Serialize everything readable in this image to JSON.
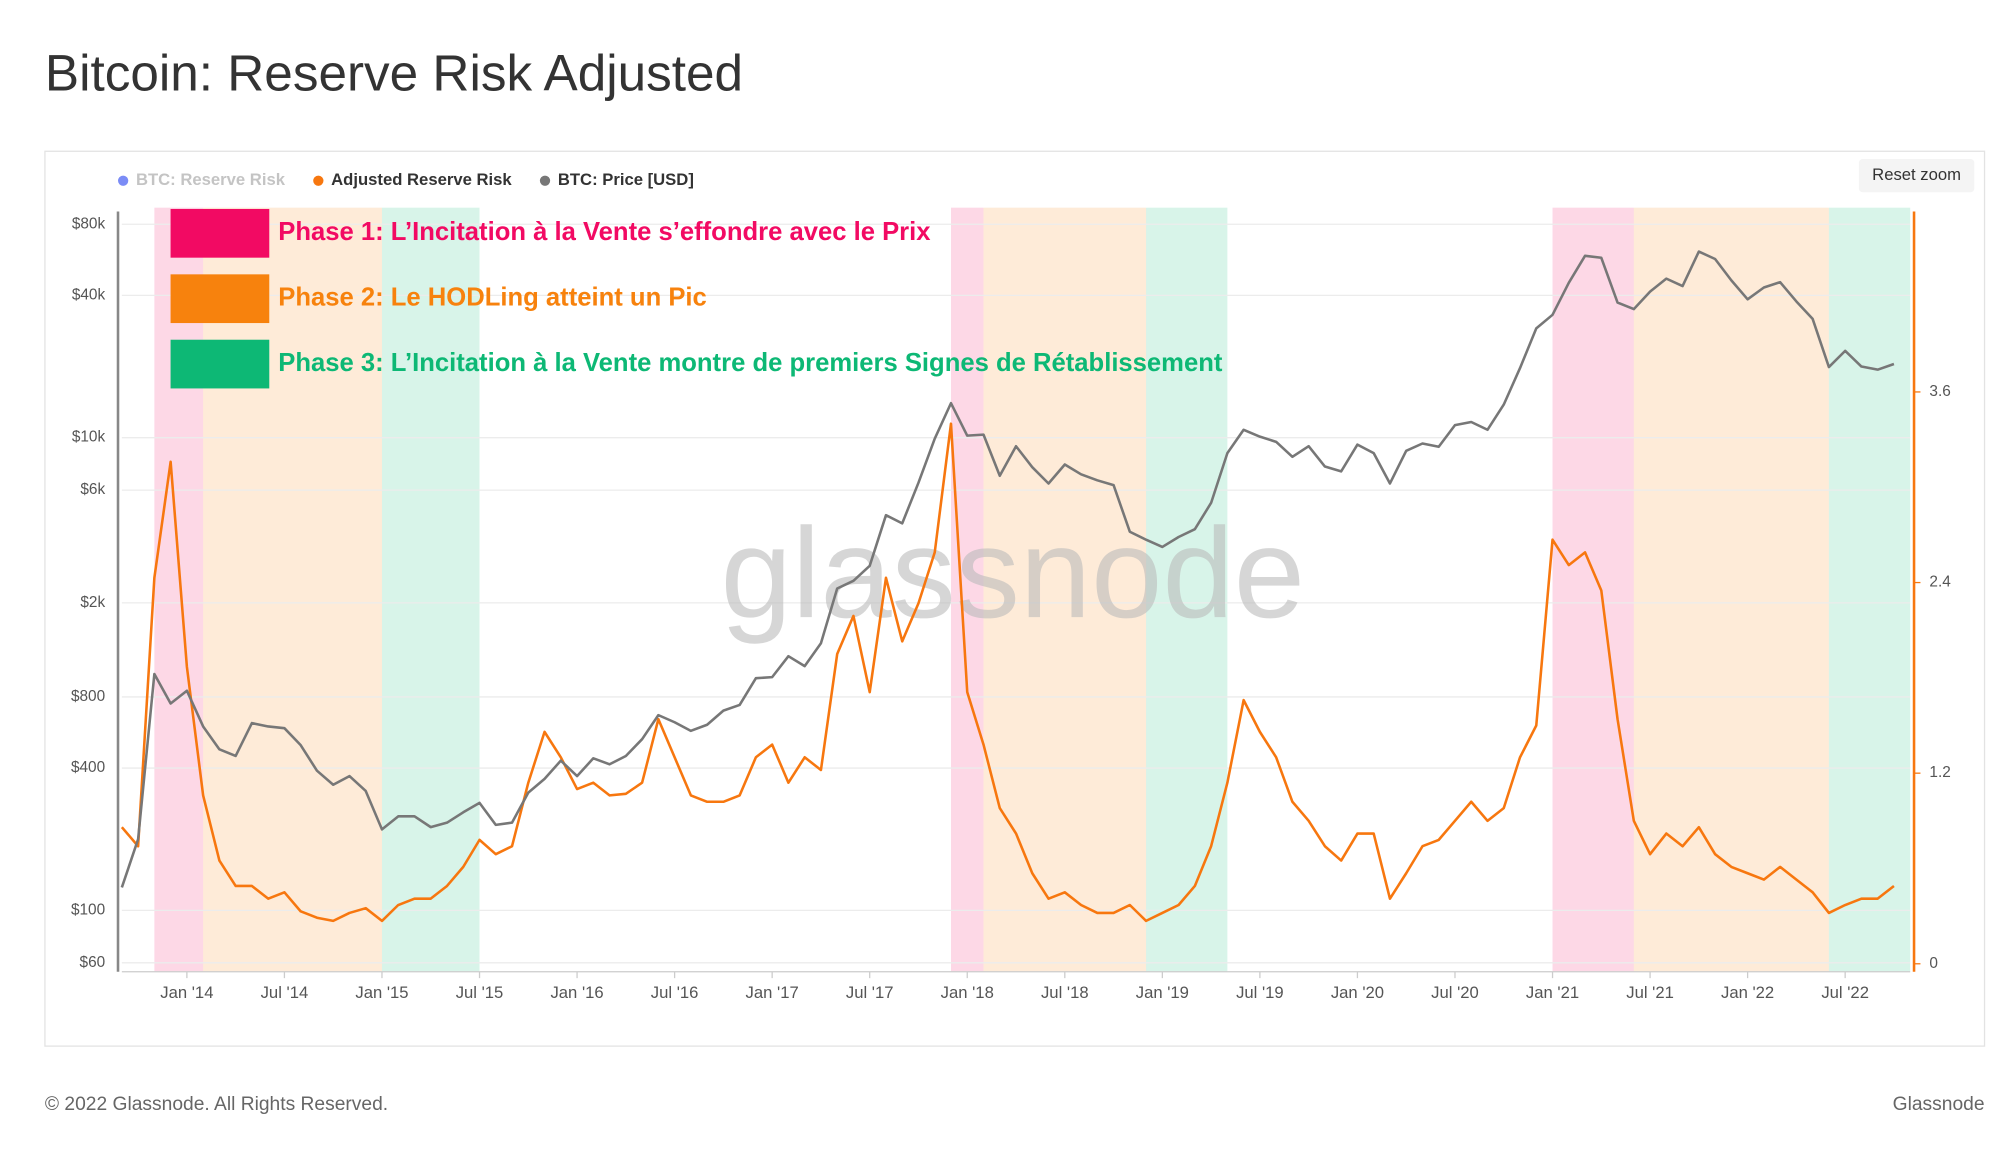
{
  "title": "Bitcoin: Reserve Risk Adjusted",
  "footer": {
    "copyright": "© 2022 Glassnode. All Rights Reserved.",
    "brand": "Glassnode"
  },
  "reset_zoom": "Reset zoom",
  "chart_data": {
    "type": "line",
    "watermark": "glassnode",
    "hidden_series": [
      {
        "name": "BTC: Reserve Risk",
        "color": "#7b8cf6"
      }
    ],
    "x": [
      "2013-09",
      "2013-10",
      "2013-11",
      "2013-12",
      "2014-01",
      "2014-02",
      "2014-03",
      "2014-04",
      "2014-05",
      "2014-06",
      "2014-07",
      "2014-08",
      "2014-09",
      "2014-10",
      "2014-11",
      "2014-12",
      "2015-01",
      "2015-02",
      "2015-03",
      "2015-04",
      "2015-05",
      "2015-06",
      "2015-07",
      "2015-08",
      "2015-09",
      "2015-10",
      "2015-11",
      "2015-12",
      "2016-01",
      "2016-02",
      "2016-03",
      "2016-04",
      "2016-05",
      "2016-06",
      "2016-07",
      "2016-08",
      "2016-09",
      "2016-10",
      "2016-11",
      "2016-12",
      "2017-01",
      "2017-02",
      "2017-03",
      "2017-04",
      "2017-05",
      "2017-06",
      "2017-07",
      "2017-08",
      "2017-09",
      "2017-10",
      "2017-11",
      "2017-12",
      "2018-01",
      "2018-02",
      "2018-03",
      "2018-04",
      "2018-05",
      "2018-06",
      "2018-07",
      "2018-08",
      "2018-09",
      "2018-10",
      "2018-11",
      "2018-12",
      "2019-01",
      "2019-02",
      "2019-03",
      "2019-04",
      "2019-05",
      "2019-06",
      "2019-07",
      "2019-08",
      "2019-09",
      "2019-10",
      "2019-11",
      "2019-12",
      "2020-01",
      "2020-02",
      "2020-03",
      "2020-04",
      "2020-05",
      "2020-06",
      "2020-07",
      "2020-08",
      "2020-09",
      "2020-10",
      "2020-11",
      "2020-12",
      "2021-01",
      "2021-02",
      "2021-03",
      "2021-04",
      "2021-05",
      "2021-06",
      "2021-07",
      "2021-08",
      "2021-09",
      "2021-10",
      "2021-11",
      "2021-12",
      "2022-01",
      "2022-02",
      "2022-03",
      "2022-04",
      "2022-05",
      "2022-06",
      "2022-07",
      "2022-08",
      "2022-09",
      "2022-10"
    ],
    "series": [
      {
        "name": "Adjusted Reserve Risk",
        "color": "#f7770f",
        "axis": "y2",
        "values": [
          0.86,
          0.74,
          2.43,
          3.16,
          1.87,
          1.06,
          0.65,
          0.49,
          0.49,
          0.41,
          0.45,
          0.33,
          0.29,
          0.27,
          0.32,
          0.35,
          0.27,
          0.37,
          0.41,
          0.41,
          0.49,
          0.61,
          0.78,
          0.69,
          0.74,
          1.14,
          1.46,
          1.3,
          1.1,
          1.14,
          1.06,
          1.07,
          1.14,
          1.54,
          1.3,
          1.06,
          1.02,
          1.02,
          1.06,
          1.3,
          1.38,
          1.14,
          1.3,
          1.22,
          1.95,
          2.19,
          1.71,
          2.43,
          2.03,
          2.27,
          2.59,
          3.4,
          1.71,
          1.38,
          0.98,
          0.82,
          0.57,
          0.41,
          0.45,
          0.37,
          0.32,
          0.32,
          0.37,
          0.27,
          0.32,
          0.37,
          0.49,
          0.74,
          1.14,
          1.66,
          1.46,
          1.3,
          1.02,
          0.9,
          0.74,
          0.65,
          0.82,
          0.82,
          0.41,
          0.57,
          0.74,
          0.78,
          0.9,
          1.02,
          0.9,
          0.98,
          1.3,
          1.5,
          2.67,
          2.51,
          2.59,
          2.35,
          1.54,
          0.9,
          0.69,
          0.82,
          0.74,
          0.86,
          0.69,
          0.61,
          0.57,
          0.53,
          0.61,
          0.53,
          0.45,
          0.32,
          0.37,
          0.41,
          0.41,
          0.49
        ]
      },
      {
        "name": "BTC: Price [USD]",
        "color": "#777777",
        "axis": "y",
        "values": [
          125,
          200,
          1000,
          750,
          850,
          600,
          480,
          450,
          620,
          600,
          590,
          500,
          390,
          340,
          370,
          320,
          220,
          250,
          250,
          225,
          235,
          260,
          285,
          230,
          235,
          315,
          360,
          430,
          370,
          440,
          415,
          450,
          530,
          670,
          625,
          575,
          610,
          700,
          740,
          960,
          970,
          1190,
          1080,
          1350,
          2300,
          2480,
          2870,
          4700,
          4340,
          6450,
          9900,
          14000,
          10200,
          10300,
          6900,
          9200,
          7500,
          6400,
          7700,
          7000,
          6600,
          6300,
          4000,
          3700,
          3450,
          3800,
          4100,
          5300,
          8600,
          10800,
          10100,
          9600,
          8300,
          9200,
          7550,
          7200,
          9350,
          8600,
          6400,
          8800,
          9450,
          9150,
          11300,
          11650,
          10800,
          13800,
          19700,
          29000,
          33100,
          45200,
          58800,
          57700,
          37300,
          35000,
          41500,
          47100,
          43800,
          61300,
          57000,
          46300,
          38500,
          43200,
          45500,
          37700,
          31800,
          19900,
          23300,
          20000,
          19400,
          20500
        ]
      }
    ],
    "xlim": [
      "2013-09",
      "2022-11"
    ],
    "xticks": [
      {
        "value": "2014-01",
        "label": "Jan '14"
      },
      {
        "value": "2014-07",
        "label": "Jul '14"
      },
      {
        "value": "2015-01",
        "label": "Jan '15"
      },
      {
        "value": "2015-07",
        "label": "Jul '15"
      },
      {
        "value": "2016-01",
        "label": "Jan '16"
      },
      {
        "value": "2016-07",
        "label": "Jul '16"
      },
      {
        "value": "2017-01",
        "label": "Jan '17"
      },
      {
        "value": "2017-07",
        "label": "Jul '17"
      },
      {
        "value": "2018-01",
        "label": "Jan '18"
      },
      {
        "value": "2018-07",
        "label": "Jul '18"
      },
      {
        "value": "2019-01",
        "label": "Jan '19"
      },
      {
        "value": "2019-07",
        "label": "Jul '19"
      },
      {
        "value": "2020-01",
        "label": "Jan '20"
      },
      {
        "value": "2020-07",
        "label": "Jul '20"
      },
      {
        "value": "2021-01",
        "label": "Jan '21"
      },
      {
        "value": "2021-07",
        "label": "Jul '21"
      },
      {
        "value": "2022-01",
        "label": "Jan '22"
      },
      {
        "value": "2022-07",
        "label": "Jul '22"
      }
    ],
    "ylog": true,
    "ylim": [
      55,
      94000
    ],
    "yticks": [
      {
        "value": 60,
        "label": "$60"
      },
      {
        "value": 100,
        "label": "$100"
      },
      {
        "value": 400,
        "label": "$400"
      },
      {
        "value": 800,
        "label": "$800"
      },
      {
        "value": 2000,
        "label": "$2k"
      },
      {
        "value": 6000,
        "label": "$6k"
      },
      {
        "value": 10000,
        "label": "$10k"
      },
      {
        "value": 40000,
        "label": "$40k"
      },
      {
        "value": 80000,
        "label": "$80k"
      }
    ],
    "y2lim": [
      -0.05,
      4.76
    ],
    "y2ticks": [
      0,
      1.2,
      2.4,
      3.6
    ],
    "grid": true,
    "phases": [
      {
        "label": "Phase 1: L’Incitation à la Vente s’effondre avec le Prix",
        "color": "#f20a63",
        "periods": [
          [
            "2013-11",
            "2014-02"
          ],
          [
            "2017-12",
            "2018-02"
          ],
          [
            "2021-01",
            "2021-06"
          ]
        ]
      },
      {
        "label": "Phase 2: Le HODLing atteint un Pic",
        "color": "#f7820d",
        "periods": [
          [
            "2014-02",
            "2015-01"
          ],
          [
            "2018-02",
            "2018-12"
          ],
          [
            "2021-06",
            "2022-06"
          ]
        ]
      },
      {
        "label": "Phase 3: L’Incitation à la Vente montre de premiers Signes de Rétablissement",
        "color": "#0db875",
        "periods": [
          [
            "2015-01",
            "2015-07"
          ],
          [
            "2018-12",
            "2019-05"
          ],
          [
            "2022-06",
            "2022-11"
          ]
        ]
      }
    ]
  }
}
